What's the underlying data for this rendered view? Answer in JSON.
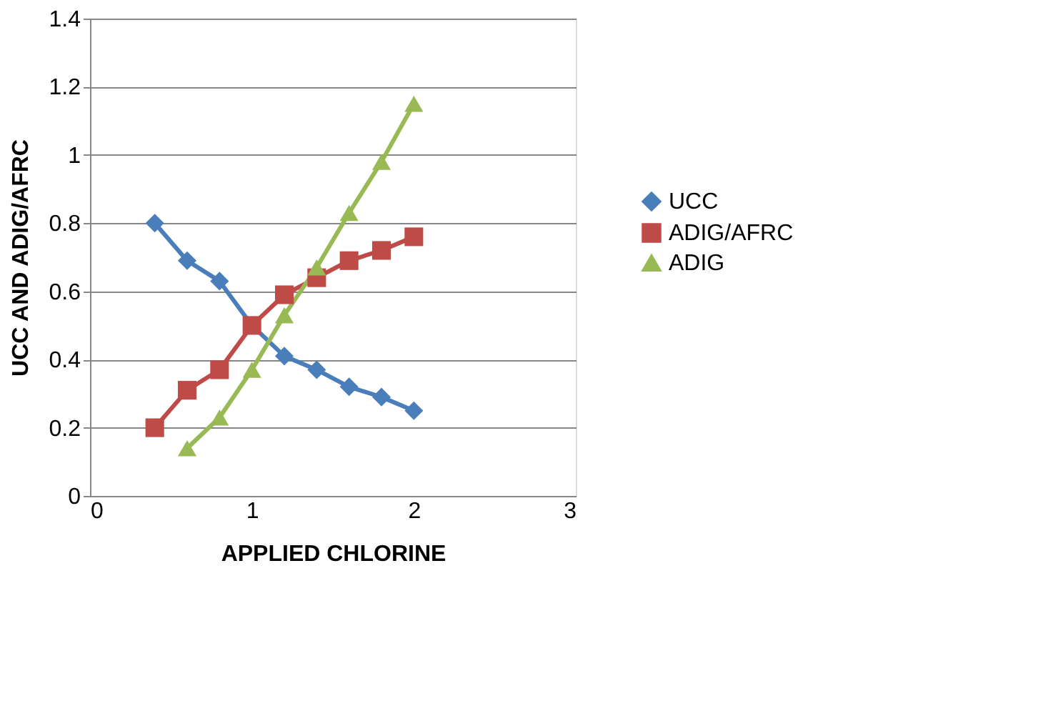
{
  "chart_data": {
    "type": "line",
    "xlabel": "APPLIED CHLORINE",
    "ylabel": "UCC AND ADIG/AFRC",
    "xlim": [
      0,
      3
    ],
    "xticks": [
      0,
      1,
      2,
      3
    ],
    "ylim": [
      0,
      1.4
    ],
    "yticks": [
      {
        "value": 0,
        "label": "0"
      },
      0.2,
      0.4,
      0.6,
      0.8,
      {
        "value": 1,
        "label": "1"
      },
      1.2,
      1.4
    ],
    "grid": "y",
    "legend": "right",
    "line_style": "solid",
    "series": [
      {
        "name": "UCC",
        "color": "#4a7ebb",
        "marker": "diamond",
        "x": [
          0.4,
          0.6,
          0.8,
          1.0,
          1.2,
          1.4,
          1.6,
          1.8,
          2.0
        ],
        "values": [
          0.8,
          0.69,
          0.63,
          0.5,
          0.41,
          0.37,
          0.32,
          0.29,
          0.25
        ]
      },
      {
        "name": "ADIG/AFRC",
        "color": "#be4b48",
        "marker": "square",
        "x": [
          0.4,
          0.6,
          0.8,
          1.0,
          1.2,
          1.4,
          1.6,
          1.8,
          2.0
        ],
        "values": [
          0.2,
          0.31,
          0.37,
          0.5,
          0.59,
          0.64,
          0.69,
          0.72,
          0.76
        ]
      },
      {
        "name": "ADIG",
        "color": "#98b954",
        "marker": "triangle",
        "x": [
          0.6,
          0.8,
          1.0,
          1.2,
          1.4,
          1.6,
          1.8,
          2.0
        ],
        "values": [
          0.14,
          0.23,
          0.37,
          0.53,
          0.67,
          0.83,
          0.98,
          1.15
        ]
      }
    ]
  }
}
